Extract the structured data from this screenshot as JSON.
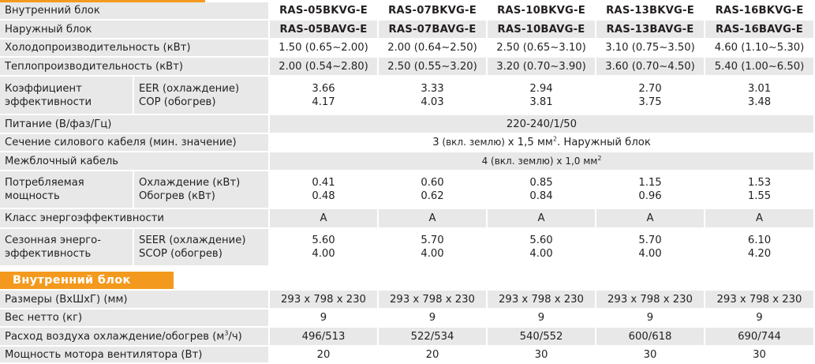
{
  "header_rows": {
    "indoor_unit": {
      "label": "Внутренний блок",
      "models": [
        "RAS-05BKVG-E",
        "RAS-07BKVG-E",
        "RAS-10BKVG-E",
        "RAS-13BKVG-E",
        "RAS-16BKVG-E"
      ]
    },
    "outdoor_unit": {
      "label": "Наружный блок",
      "models": [
        "RAS-05BAVG-E",
        "RAS-07BAVG-E",
        "RAS-10BAVG-E",
        "RAS-13BAVG-E",
        "RAS-16BAVG-E"
      ]
    }
  },
  "cooling_capacity": {
    "label": "Холодопроизводительность (кВт)",
    "values": [
      "1.50 (0.65~2.00)",
      "2.00 (0.64~2.50)",
      "2.50 (0.65~3.10)",
      "3.10 (0.75~3.50)",
      "4.60 (1.10~5.30)"
    ]
  },
  "heating_capacity": {
    "label": "Теплопроизводительность (кВт)",
    "values": [
      "2.00 (0.54~2.80)",
      "2.50 (0.55~3.20)",
      "3.20 (0.70~3.90)",
      "3.60 (0.70~4.50)",
      "5.40 (1.00~6.50)"
    ]
  },
  "efficiency": {
    "label_line1": "Коэффициент",
    "label_line2": "эффективности",
    "sub1": "EER (охлаждение)",
    "sub2": "COP (обогрев)",
    "eer": [
      "3.66",
      "3.33",
      "2.94",
      "2.70",
      "3.01"
    ],
    "cop": [
      "4.17",
      "4.03",
      "3.81",
      "3.75",
      "3.48"
    ]
  },
  "power_supply": {
    "label": "Питание (В/фаз/Гц)",
    "value": "220-240/1/50"
  },
  "power_cable": {
    "label": "Сечение силового кабеля (мин. значение)",
    "value_a": "3",
    "value_b": " (вкл. землю) ",
    "value_c": "x 1,5 мм",
    "sup": "2",
    "value_d": ". Наружный блок"
  },
  "interconnect_cable": {
    "label": "Межблочный кабель",
    "value_a": "4 ",
    "value_b": "(вкл. землю) x 1,0 мм",
    "sup": "2"
  },
  "power_consumption": {
    "label_line1": "Потребляемая",
    "label_line2": "мощность",
    "sub1": "Охлаждение (кВт)",
    "sub2": "Обогрев (кВт)",
    "cooling": [
      "0.41",
      "0.60",
      "0.85",
      "1.15",
      "1.53"
    ],
    "heating": [
      "0.48",
      "0.62",
      "0.84",
      "0.96",
      "1.55"
    ]
  },
  "energy_class": {
    "label": "Класс энергоэффективности",
    "values": [
      "A",
      "A",
      "A",
      "A",
      "A"
    ]
  },
  "seasonal": {
    "label_line1": "Сезонная энерго-",
    "label_line2": "эффективность",
    "sub1": "SEER (охлаждение)",
    "sub2": "SCOP (обогрев)",
    "seer": [
      "5.60",
      "5.70",
      "5.60",
      "5.70",
      "6.10"
    ],
    "scop": [
      "4.00",
      "4.00",
      "4.00",
      "4.00",
      "4.20"
    ]
  },
  "indoor_section": {
    "title": "Внутренний блок",
    "dimensions": {
      "label": "Размеры (ВхШхГ) (мм)",
      "values": [
        "293 x 798 x 230",
        "293 x 798 x 230",
        "293 x 798 x 230",
        "293 x 798 x 230",
        "293 x 798 x 230"
      ]
    },
    "net_weight": {
      "label": "Вес нетто  (кг)",
      "values": [
        "9",
        "9",
        "9",
        "9",
        "9"
      ]
    },
    "airflow": {
      "label_a": "Расход воздуха  охлаждение/обогрев  (м",
      "sup": "3",
      "label_b": "/ч)",
      "values": [
        "496/513",
        "522/534",
        "540/552",
        "600/618",
        "690/744"
      ]
    },
    "fan_motor": {
      "label": "Мощность мотора вентилятора (Вт)",
      "values": [
        "20",
        "20",
        "30",
        "30",
        "30"
      ]
    }
  },
  "colors": {
    "accent": "#f39a1e",
    "row_shade": "#e8e8e8",
    "text": "#231f20"
  }
}
